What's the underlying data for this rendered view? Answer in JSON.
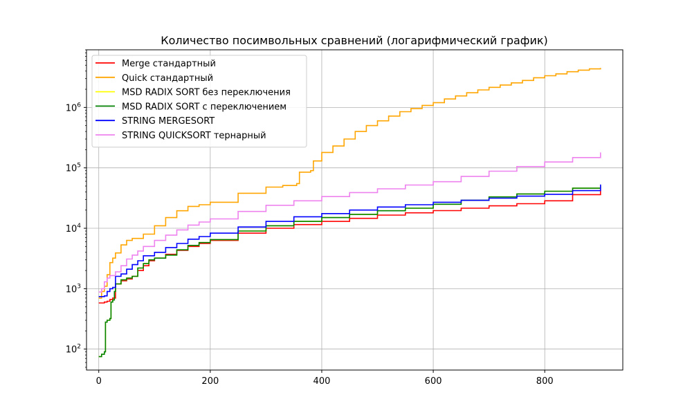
{
  "chart_data": {
    "type": "line",
    "title": "Количество посимвольных сравнений (логарифмический график)",
    "xlabel": "",
    "ylabel": "",
    "xlim": [
      -22,
      940
    ],
    "ylim": [
      45,
      9000000
    ],
    "yscale": "log",
    "grid": true,
    "legend_position": "top-left",
    "x_ticks": [
      0,
      200,
      400,
      600,
      800
    ],
    "x_tick_labels": [
      "0",
      "200",
      "400",
      "600",
      "800"
    ],
    "y_ticks": [
      100,
      1000,
      10000,
      100000,
      1000000
    ],
    "y_tick_labels": [
      {
        "base": "10",
        "exp": "2"
      },
      {
        "base": "10",
        "exp": "3"
      },
      {
        "base": "10",
        "exp": "4"
      },
      {
        "base": "10",
        "exp": "5"
      },
      {
        "base": "10",
        "exp": "6"
      }
    ],
    "series": [
      {
        "name": "Merge стандартный",
        "color": "#ff0000",
        "points": [
          [
            0,
            580
          ],
          [
            10,
            600
          ],
          [
            15,
            620
          ],
          [
            20,
            660
          ],
          [
            25,
            700
          ],
          [
            30,
            1200
          ],
          [
            40,
            1350
          ],
          [
            50,
            1450
          ],
          [
            60,
            1600
          ],
          [
            70,
            2000
          ],
          [
            80,
            2400
          ],
          [
            90,
            2900
          ],
          [
            100,
            3200
          ],
          [
            120,
            3700
          ],
          [
            140,
            4300
          ],
          [
            160,
            5000
          ],
          [
            180,
            5600
          ],
          [
            200,
            6300
          ],
          [
            250,
            8300
          ],
          [
            300,
            10000
          ],
          [
            350,
            11500
          ],
          [
            400,
            13000
          ],
          [
            450,
            14600
          ],
          [
            500,
            16500
          ],
          [
            550,
            18000
          ],
          [
            600,
            19600
          ],
          [
            650,
            21500
          ],
          [
            700,
            23500
          ],
          [
            750,
            25500
          ],
          [
            800,
            28500
          ],
          [
            850,
            36000
          ],
          [
            900,
            44000
          ]
        ]
      },
      {
        "name": "Quick стандартный",
        "color": "#ffa500",
        "points": [
          [
            0,
            700
          ],
          [
            5,
            900
          ],
          [
            10,
            1100
          ],
          [
            15,
            1700
          ],
          [
            20,
            2700
          ],
          [
            25,
            3200
          ],
          [
            30,
            3900
          ],
          [
            40,
            5300
          ],
          [
            50,
            6300
          ],
          [
            60,
            6800
          ],
          [
            80,
            8000
          ],
          [
            100,
            11000
          ],
          [
            120,
            15000
          ],
          [
            140,
            19500
          ],
          [
            160,
            23000
          ],
          [
            180,
            24500
          ],
          [
            200,
            27000
          ],
          [
            250,
            38000
          ],
          [
            300,
            48000
          ],
          [
            330,
            51000
          ],
          [
            355,
            55000
          ],
          [
            360,
            85000
          ],
          [
            380,
            90000
          ],
          [
            385,
            130000
          ],
          [
            400,
            180000
          ],
          [
            420,
            230000
          ],
          [
            440,
            300000
          ],
          [
            460,
            400000
          ],
          [
            480,
            500000
          ],
          [
            500,
            600000
          ],
          [
            520,
            720000
          ],
          [
            540,
            850000
          ],
          [
            560,
            960000
          ],
          [
            580,
            1080000
          ],
          [
            600,
            1200000
          ],
          [
            620,
            1380000
          ],
          [
            640,
            1550000
          ],
          [
            660,
            1750000
          ],
          [
            680,
            1950000
          ],
          [
            700,
            2150000
          ],
          [
            720,
            2350000
          ],
          [
            740,
            2550000
          ],
          [
            760,
            2800000
          ],
          [
            780,
            3100000
          ],
          [
            800,
            3350000
          ],
          [
            820,
            3600000
          ],
          [
            840,
            3900000
          ],
          [
            860,
            4150000
          ],
          [
            880,
            4350000
          ],
          [
            900,
            4500000
          ]
        ]
      },
      {
        "name": "MSD RADIX SORT без переключения",
        "color": "#ffff00",
        "points": [
          [
            0,
            75
          ],
          [
            5,
            82
          ],
          [
            10,
            90
          ],
          [
            12,
            280
          ],
          [
            15,
            300
          ],
          [
            20,
            320
          ],
          [
            22,
            600
          ],
          [
            25,
            650
          ],
          [
            28,
            900
          ],
          [
            30,
            1200
          ],
          [
            40,
            1400
          ],
          [
            50,
            1500
          ],
          [
            60,
            1600
          ],
          [
            70,
            2200
          ],
          [
            80,
            2600
          ],
          [
            90,
            3000
          ],
          [
            100,
            3200
          ],
          [
            120,
            3600
          ],
          [
            140,
            4400
          ],
          [
            160,
            5200
          ],
          [
            180,
            5800
          ],
          [
            200,
            6500
          ],
          [
            250,
            9000
          ],
          [
            300,
            11000
          ],
          [
            350,
            13000
          ],
          [
            400,
            15000
          ],
          [
            450,
            17000
          ],
          [
            500,
            19500
          ],
          [
            550,
            21500
          ],
          [
            600,
            25000
          ],
          [
            650,
            29000
          ],
          [
            700,
            33000
          ],
          [
            750,
            37000
          ],
          [
            800,
            41000
          ],
          [
            850,
            46000
          ],
          [
            900,
            51000
          ]
        ]
      },
      {
        "name": "MSD RADIX SORT с переключением",
        "color": "#008000",
        "points": [
          [
            0,
            75
          ],
          [
            5,
            82
          ],
          [
            10,
            90
          ],
          [
            12,
            280
          ],
          [
            15,
            300
          ],
          [
            20,
            320
          ],
          [
            22,
            600
          ],
          [
            25,
            650
          ],
          [
            28,
            900
          ],
          [
            30,
            1200
          ],
          [
            40,
            1400
          ],
          [
            50,
            1500
          ],
          [
            60,
            1600
          ],
          [
            70,
            2200
          ],
          [
            80,
            2600
          ],
          [
            90,
            3000
          ],
          [
            100,
            3200
          ],
          [
            120,
            3600
          ],
          [
            140,
            4400
          ],
          [
            160,
            5200
          ],
          [
            180,
            5800
          ],
          [
            200,
            6500
          ],
          [
            250,
            9000
          ],
          [
            300,
            11000
          ],
          [
            350,
            13000
          ],
          [
            400,
            15000
          ],
          [
            450,
            17000
          ],
          [
            500,
            19500
          ],
          [
            550,
            21500
          ],
          [
            600,
            25000
          ],
          [
            650,
            29000
          ],
          [
            700,
            33000
          ],
          [
            750,
            37000
          ],
          [
            800,
            41000
          ],
          [
            850,
            46000
          ],
          [
            900,
            51000
          ]
        ]
      },
      {
        "name": "STRING MERGESORT",
        "color": "#0000ff",
        "points": [
          [
            0,
            740
          ],
          [
            10,
            760
          ],
          [
            15,
            900
          ],
          [
            20,
            1000
          ],
          [
            25,
            1050
          ],
          [
            30,
            1600
          ],
          [
            40,
            1750
          ],
          [
            50,
            2100
          ],
          [
            60,
            2500
          ],
          [
            70,
            2900
          ],
          [
            80,
            3500
          ],
          [
            100,
            4000
          ],
          [
            120,
            4800
          ],
          [
            140,
            5600
          ],
          [
            160,
            6600
          ],
          [
            180,
            7300
          ],
          [
            200,
            8300
          ],
          [
            250,
            10500
          ],
          [
            300,
            13000
          ],
          [
            350,
            15500
          ],
          [
            400,
            17500
          ],
          [
            450,
            20000
          ],
          [
            500,
            22500
          ],
          [
            550,
            24500
          ],
          [
            600,
            27000
          ],
          [
            650,
            29000
          ],
          [
            700,
            31500
          ],
          [
            750,
            34000
          ],
          [
            800,
            36500
          ],
          [
            850,
            42000
          ],
          [
            900,
            53000
          ]
        ]
      },
      {
        "name": "STRING QUICKSORT тернарный",
        "color": "#ee82ee",
        "points": [
          [
            0,
            880
          ],
          [
            5,
            1000
          ],
          [
            10,
            1300
          ],
          [
            15,
            1500
          ],
          [
            20,
            1650
          ],
          [
            30,
            1900
          ],
          [
            40,
            2400
          ],
          [
            50,
            3100
          ],
          [
            60,
            3600
          ],
          [
            70,
            4200
          ],
          [
            80,
            5000
          ],
          [
            100,
            6300
          ],
          [
            120,
            7700
          ],
          [
            140,
            9400
          ],
          [
            160,
            11300
          ],
          [
            180,
            12700
          ],
          [
            200,
            14300
          ],
          [
            250,
            19000
          ],
          [
            300,
            24000
          ],
          [
            350,
            28500
          ],
          [
            400,
            33500
          ],
          [
            450,
            39000
          ],
          [
            500,
            45000
          ],
          [
            550,
            52000
          ],
          [
            600,
            59000
          ],
          [
            650,
            72000
          ],
          [
            700,
            88000
          ],
          [
            750,
            105000
          ],
          [
            800,
            125000
          ],
          [
            850,
            148000
          ],
          [
            900,
            180000
          ]
        ]
      }
    ]
  }
}
